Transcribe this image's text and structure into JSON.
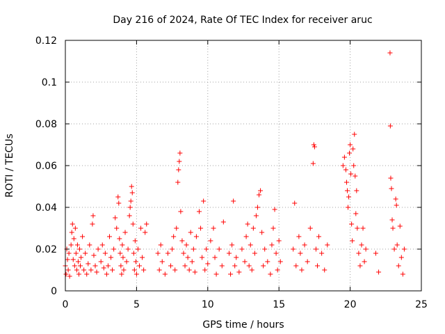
{
  "chart_data": {
    "type": "scatter",
    "title": "Day 216 of 2024, Rate Of TEC Index for receiver aruc",
    "xlabel": "GPS time / hours",
    "ylabel": "ROTI / TECUs",
    "xlim": [
      0,
      25
    ],
    "ylim": [
      0,
      0.12
    ],
    "x_ticks": [
      0,
      5,
      10,
      15,
      20,
      25
    ],
    "x_tick_labels": [
      "0",
      "5",
      "10",
      "15",
      "20",
      "25"
    ],
    "y_ticks": [
      0,
      0.02,
      0.04,
      0.06,
      0.08,
      0.1,
      0.12
    ],
    "y_tick_labels": [
      "0",
      "0.02",
      "0.04",
      "0.06",
      "0.08",
      "0.1",
      "0.12"
    ],
    "grid": true,
    "marker": "plus",
    "color": "#ff0000",
    "series": [
      {
        "points": [
          [
            0.0,
            0.012
          ],
          [
            0.05,
            0.008
          ],
          [
            0.1,
            0.02
          ],
          [
            0.15,
            0.015
          ],
          [
            0.2,
            0.01
          ],
          [
            0.25,
            0.018
          ],
          [
            0.3,
            0.007
          ],
          [
            0.4,
            0.022
          ],
          [
            0.45,
            0.028
          ],
          [
            0.5,
            0.032
          ],
          [
            0.55,
            0.015
          ],
          [
            0.6,
            0.025
          ],
          [
            0.65,
            0.012
          ],
          [
            0.7,
            0.03
          ],
          [
            0.75,
            0.018
          ],
          [
            0.8,
            0.01
          ],
          [
            0.85,
            0.022
          ],
          [
            0.9,
            0.014
          ],
          [
            0.95,
            0.008
          ],
          [
            1.0,
            0.02
          ],
          [
            1.05,
            0.012
          ],
          [
            1.1,
            0.016
          ],
          [
            1.2,
            0.026
          ],
          [
            1.3,
            0.01
          ],
          [
            1.4,
            0.018
          ],
          [
            1.5,
            0.008
          ],
          [
            1.6,
            0.013
          ],
          [
            1.7,
            0.022
          ],
          [
            1.8,
            0.01
          ],
          [
            1.9,
            0.032
          ],
          [
            1.95,
            0.036
          ],
          [
            2.0,
            0.017
          ],
          [
            2.1,
            0.012
          ],
          [
            2.2,
            0.009
          ],
          [
            2.3,
            0.02
          ],
          [
            2.5,
            0.014
          ],
          [
            2.6,
            0.022
          ],
          [
            2.7,
            0.011
          ],
          [
            2.8,
            0.018
          ],
          [
            2.9,
            0.008
          ],
          [
            3.0,
            0.012
          ],
          [
            3.1,
            0.026
          ],
          [
            3.2,
            0.016
          ],
          [
            3.3,
            0.01
          ],
          [
            3.4,
            0.02
          ],
          [
            3.5,
            0.035
          ],
          [
            3.6,
            0.03
          ],
          [
            3.7,
            0.045
          ],
          [
            3.75,
            0.042
          ],
          [
            3.8,
            0.025
          ],
          [
            3.85,
            0.018
          ],
          [
            3.9,
            0.012
          ],
          [
            3.95,
            0.008
          ],
          [
            4.0,
            0.022
          ],
          [
            4.05,
            0.016
          ],
          [
            4.1,
            0.01
          ],
          [
            4.2,
            0.028
          ],
          [
            4.3,
            0.014
          ],
          [
            4.4,
            0.02
          ],
          [
            4.5,
            0.036
          ],
          [
            4.55,
            0.04
          ],
          [
            4.6,
            0.043
          ],
          [
            4.65,
            0.05
          ],
          [
            4.7,
            0.047
          ],
          [
            4.75,
            0.032
          ],
          [
            4.8,
            0.018
          ],
          [
            4.85,
            0.01
          ],
          [
            4.9,
            0.024
          ],
          [
            4.95,
            0.014
          ],
          [
            5.0,
            0.008
          ],
          [
            5.1,
            0.02
          ],
          [
            5.2,
            0.012
          ],
          [
            5.3,
            0.03
          ],
          [
            5.4,
            0.016
          ],
          [
            5.5,
            0.01
          ],
          [
            5.6,
            0.028
          ],
          [
            5.7,
            0.032
          ],
          [
            6.5,
            0.018
          ],
          [
            6.6,
            0.01
          ],
          [
            6.7,
            0.022
          ],
          [
            6.8,
            0.014
          ],
          [
            7.0,
            0.008
          ],
          [
            7.2,
            0.018
          ],
          [
            7.4,
            0.012
          ],
          [
            7.5,
            0.02
          ],
          [
            7.6,
            0.026
          ],
          [
            7.7,
            0.01
          ],
          [
            7.8,
            0.03
          ],
          [
            7.9,
            0.052
          ],
          [
            7.95,
            0.058
          ],
          [
            8.0,
            0.062
          ],
          [
            8.05,
            0.066
          ],
          [
            8.1,
            0.038
          ],
          [
            8.2,
            0.024
          ],
          [
            8.3,
            0.018
          ],
          [
            8.4,
            0.012
          ],
          [
            8.5,
            0.022
          ],
          [
            8.6,
            0.016
          ],
          [
            8.7,
            0.01
          ],
          [
            8.8,
            0.028
          ],
          [
            8.9,
            0.014
          ],
          [
            9.0,
            0.02
          ],
          [
            9.1,
            0.009
          ],
          [
            9.2,
            0.026
          ],
          [
            9.4,
            0.038
          ],
          [
            9.5,
            0.03
          ],
          [
            9.6,
            0.016
          ],
          [
            9.7,
            0.043
          ],
          [
            9.8,
            0.01
          ],
          [
            9.9,
            0.02
          ],
          [
            10.0,
            0.013
          ],
          [
            10.2,
            0.024
          ],
          [
            10.4,
            0.03
          ],
          [
            10.5,
            0.016
          ],
          [
            10.6,
            0.008
          ],
          [
            10.8,
            0.02
          ],
          [
            11.0,
            0.012
          ],
          [
            11.1,
            0.033
          ],
          [
            11.5,
            0.018
          ],
          [
            11.6,
            0.008
          ],
          [
            11.7,
            0.022
          ],
          [
            11.8,
            0.043
          ],
          [
            11.9,
            0.012
          ],
          [
            12.0,
            0.016
          ],
          [
            12.2,
            0.009
          ],
          [
            12.4,
            0.02
          ],
          [
            12.6,
            0.014
          ],
          [
            12.7,
            0.026
          ],
          [
            12.8,
            0.032
          ],
          [
            12.9,
            0.012
          ],
          [
            13.0,
            0.022
          ],
          [
            13.1,
            0.01
          ],
          [
            13.2,
            0.03
          ],
          [
            13.3,
            0.018
          ],
          [
            13.4,
            0.036
          ],
          [
            13.5,
            0.04
          ],
          [
            13.6,
            0.046
          ],
          [
            13.7,
            0.048
          ],
          [
            13.8,
            0.028
          ],
          [
            13.9,
            0.012
          ],
          [
            14.0,
            0.02
          ],
          [
            14.2,
            0.014
          ],
          [
            14.4,
            0.008
          ],
          [
            14.5,
            0.022
          ],
          [
            14.6,
            0.03
          ],
          [
            14.7,
            0.039
          ],
          [
            14.8,
            0.018
          ],
          [
            14.9,
            0.01
          ],
          [
            15.0,
            0.024
          ],
          [
            15.1,
            0.014
          ],
          [
            16.0,
            0.02
          ],
          [
            16.1,
            0.042
          ],
          [
            16.2,
            0.012
          ],
          [
            16.4,
            0.026
          ],
          [
            16.5,
            0.018
          ],
          [
            16.6,
            0.01
          ],
          [
            16.8,
            0.022
          ],
          [
            17.0,
            0.014
          ],
          [
            17.2,
            0.03
          ],
          [
            17.4,
            0.061
          ],
          [
            17.45,
            0.07
          ],
          [
            17.5,
            0.069
          ],
          [
            17.6,
            0.02
          ],
          [
            17.7,
            0.012
          ],
          [
            17.8,
            0.026
          ],
          [
            18.0,
            0.018
          ],
          [
            18.2,
            0.01
          ],
          [
            18.4,
            0.022
          ],
          [
            19.5,
            0.06
          ],
          [
            19.6,
            0.064
          ],
          [
            19.7,
            0.058
          ],
          [
            19.75,
            0.052
          ],
          [
            19.8,
            0.048
          ],
          [
            19.85,
            0.04
          ],
          [
            19.9,
            0.045
          ],
          [
            19.95,
            0.066
          ],
          [
            20.0,
            0.07
          ],
          [
            20.05,
            0.056
          ],
          [
            20.1,
            0.032
          ],
          [
            20.15,
            0.024
          ],
          [
            20.2,
            0.068
          ],
          [
            20.25,
            0.06
          ],
          [
            20.3,
            0.075
          ],
          [
            20.35,
            0.055
          ],
          [
            20.4,
            0.037
          ],
          [
            20.45,
            0.048
          ],
          [
            20.5,
            0.03
          ],
          [
            20.6,
            0.018
          ],
          [
            20.7,
            0.012
          ],
          [
            20.8,
            0.022
          ],
          [
            20.9,
            0.03
          ],
          [
            21.0,
            0.014
          ],
          [
            21.1,
            0.02
          ],
          [
            21.8,
            0.018
          ],
          [
            22.0,
            0.009
          ],
          [
            22.8,
            0.114
          ],
          [
            22.82,
            0.079
          ],
          [
            22.85,
            0.054
          ],
          [
            22.9,
            0.049
          ],
          [
            22.95,
            0.034
          ],
          [
            23.0,
            0.03
          ],
          [
            23.1,
            0.02
          ],
          [
            23.2,
            0.044
          ],
          [
            23.25,
            0.041
          ],
          [
            23.3,
            0.022
          ],
          [
            23.4,
            0.012
          ],
          [
            23.5,
            0.031
          ],
          [
            23.6,
            0.016
          ],
          [
            23.7,
            0.008
          ],
          [
            23.8,
            0.02
          ]
        ]
      }
    ]
  }
}
